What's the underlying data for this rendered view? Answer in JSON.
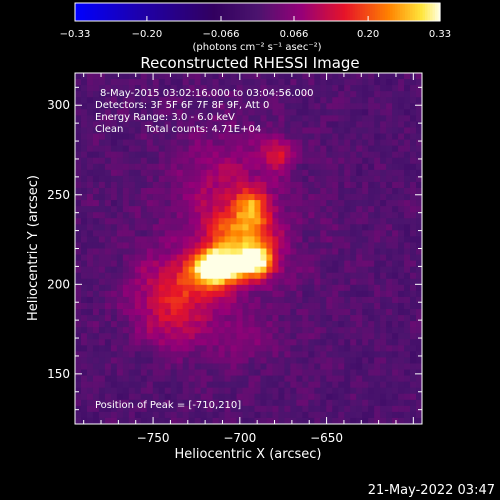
{
  "chart_data": {
    "type": "heatmap",
    "title": "Reconstructed RHESSI Image",
    "xlabel": "Heliocentric X (arcsec)",
    "ylabel": "Heliocentric Y (arcsec)",
    "xlim": [
      -795,
      -595
    ],
    "ylim": [
      122,
      318
    ],
    "x_ticks": [
      -750,
      -700,
      -650
    ],
    "x_tick_labels": [
      "−750",
      "−700",
      "−650"
    ],
    "y_ticks": [
      150,
      200,
      250,
      300
    ],
    "y_tick_labels": [
      "150",
      "200",
      "250",
      "300"
    ],
    "colorbar": {
      "range": [
        -0.33,
        0.33
      ],
      "ticks": [
        -0.33,
        -0.2,
        -0.066,
        0.066,
        0.2,
        0.33
      ],
      "tick_labels": [
        "−0.33",
        "−0.20",
        "−0.066",
        "0.066",
        "0.20",
        "0.33"
      ],
      "unit_label": "(photons cm⁻² s⁻¹ asec⁻²)"
    },
    "annotations": {
      "time_range": "8-May-2015 03:02:16.000 to 03:04:56.000",
      "detectors": "Detectors: 3F 5F 6F 7F 8F 9F, Att 0",
      "energy": "Energy Range: 3.0 - 6.0 keV",
      "clean": "Clean",
      "total_counts": "Total counts: 4.71E+04",
      "peak": "Position of Peak = [-710,210]"
    },
    "peak": {
      "x": -710,
      "y": 210,
      "value": 0.33
    },
    "sources": [
      {
        "x": -712,
        "y": 210,
        "peak": 0.33,
        "sx": 10,
        "sy": 7
      },
      {
        "x": -690,
        "y": 213,
        "peak": 0.27,
        "sx": 8,
        "sy": 7
      },
      {
        "x": -700,
        "y": 228,
        "peak": 0.16,
        "sx": 14,
        "sy": 10
      },
      {
        "x": -693,
        "y": 243,
        "peak": 0.15,
        "sx": 7,
        "sy": 8
      },
      {
        "x": -678,
        "y": 273,
        "peak": 0.13,
        "sx": 6,
        "sy": 6
      },
      {
        "x": -725,
        "y": 200,
        "peak": 0.12,
        "sx": 15,
        "sy": 12
      },
      {
        "x": -748,
        "y": 194,
        "peak": 0.07,
        "sx": 15,
        "sy": 15
      },
      {
        "x": -738,
        "y": 175,
        "peak": 0.07,
        "sx": 12,
        "sy": 10
      },
      {
        "x": -708,
        "y": 255,
        "peak": 0.07,
        "sx": 18,
        "sy": 20
      },
      {
        "x": -700,
        "y": 170,
        "peak": 0.04,
        "sx": 15,
        "sy": 10
      }
    ]
  },
  "footer": {
    "timestamp": "21-May-2022 03:47"
  }
}
